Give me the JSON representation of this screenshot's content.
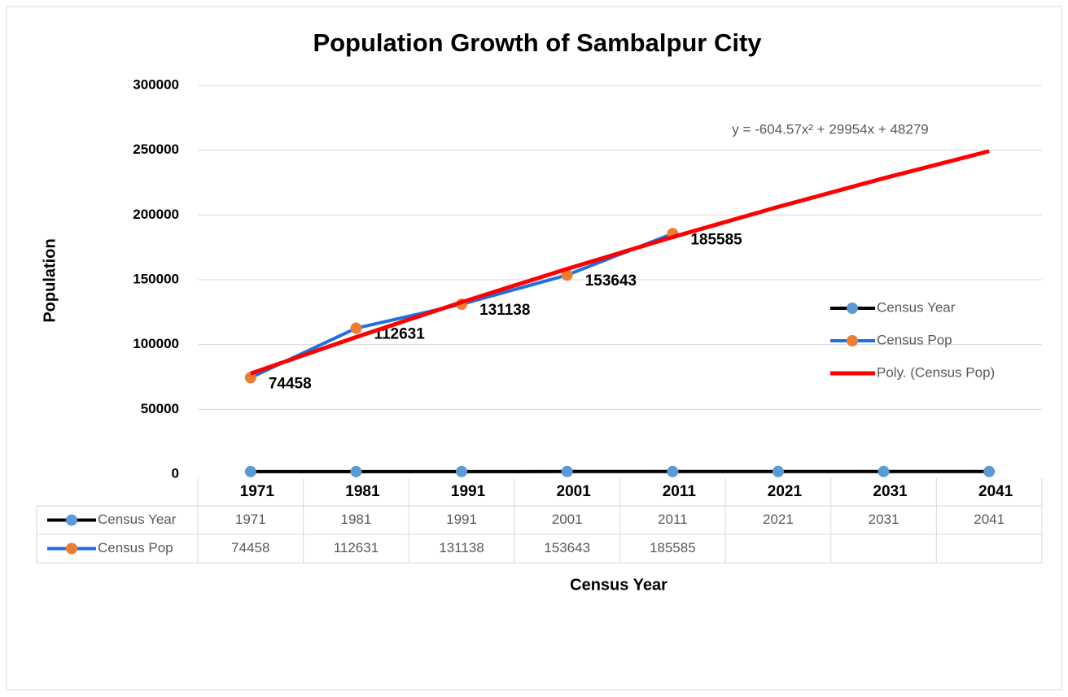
{
  "chart_data": {
    "type": "line",
    "title": "Population Growth of Sambalpur City",
    "y_label": "Population",
    "x_label": "Census Year",
    "annotation": "y = -604.57x² + 29954x + 48279",
    "categories": [
      "1971",
      "1981",
      "1991",
      "2001",
      "2011",
      "2021",
      "2031",
      "2041"
    ],
    "series": [
      {
        "name": "Census Year",
        "color": "#000000",
        "marker_color": "#5b9bd5",
        "values": [
          1971,
          1981,
          1991,
          2001,
          2011,
          2021,
          2031,
          2041
        ],
        "in_table": true
      },
      {
        "name": "Census Pop",
        "color": "#1f6fe0",
        "marker_color": "#ed7d31",
        "values": [
          74458,
          112631,
          131138,
          153643,
          185585,
          null,
          null,
          null
        ],
        "in_table": true,
        "data_labels": true
      },
      {
        "name": "Poly. (Census Pop)",
        "color": "#ff0000",
        "values": [
          77628,
          105769,
          132701,
          158424,
          182940,
          206246,
          228345,
          249235
        ],
        "in_table": false
      }
    ],
    "ylim": [
      0,
      300000
    ],
    "yticks": [
      0,
      50000,
      100000,
      150000,
      200000,
      250000,
      300000
    ],
    "grid": true,
    "legend": "right"
  }
}
